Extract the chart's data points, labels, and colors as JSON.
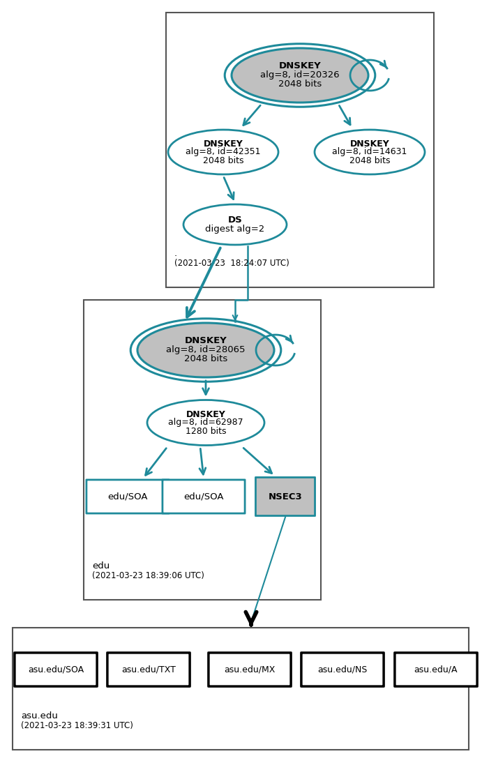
{
  "teal": "#1e8a9a",
  "gray_fill": "#C0C0C0",
  "white_fill": "#FFFFFF",
  "black": "#000000",
  "dark_gray": "#555555",
  "zone_dot_label": ".",
  "zone_dot_time": "(2021-03-23  18:24:07 UTC)",
  "zone_edu_label": "edu",
  "zone_edu_time": "(2021-03-23 18:39:06 UTC)",
  "zone_asu_label": "asu.edu",
  "zone_asu_time": "(2021-03-23 18:39:31 UTC)",
  "root_ksk_lines": [
    "DNSKEY",
    "alg=8, id=20326",
    "2048 bits"
  ],
  "root_zsk1_lines": [
    "DNSKEY",
    "alg=8, id=42351",
    "2048 bits"
  ],
  "root_zsk2_lines": [
    "DNSKEY",
    "alg=8, id=14631",
    "2048 bits"
  ],
  "ds_lines": [
    "DS",
    "digest alg=2"
  ],
  "edu_ksk_lines": [
    "DNSKEY",
    "alg=8, id=28065",
    "2048 bits"
  ],
  "edu_zsk_lines": [
    "DNSKEY",
    "alg=8, id=62987",
    "1280 bits"
  ],
  "esoa1_label": "edu/SOA",
  "esoa2_label": "edu/SOA",
  "nsec3_label": "NSEC3",
  "asu_labels": [
    "asu.edu/SOA",
    "asu.edu/TXT",
    "asu.edu/MX",
    "asu.edu/NS",
    "asu.edu/A"
  ]
}
